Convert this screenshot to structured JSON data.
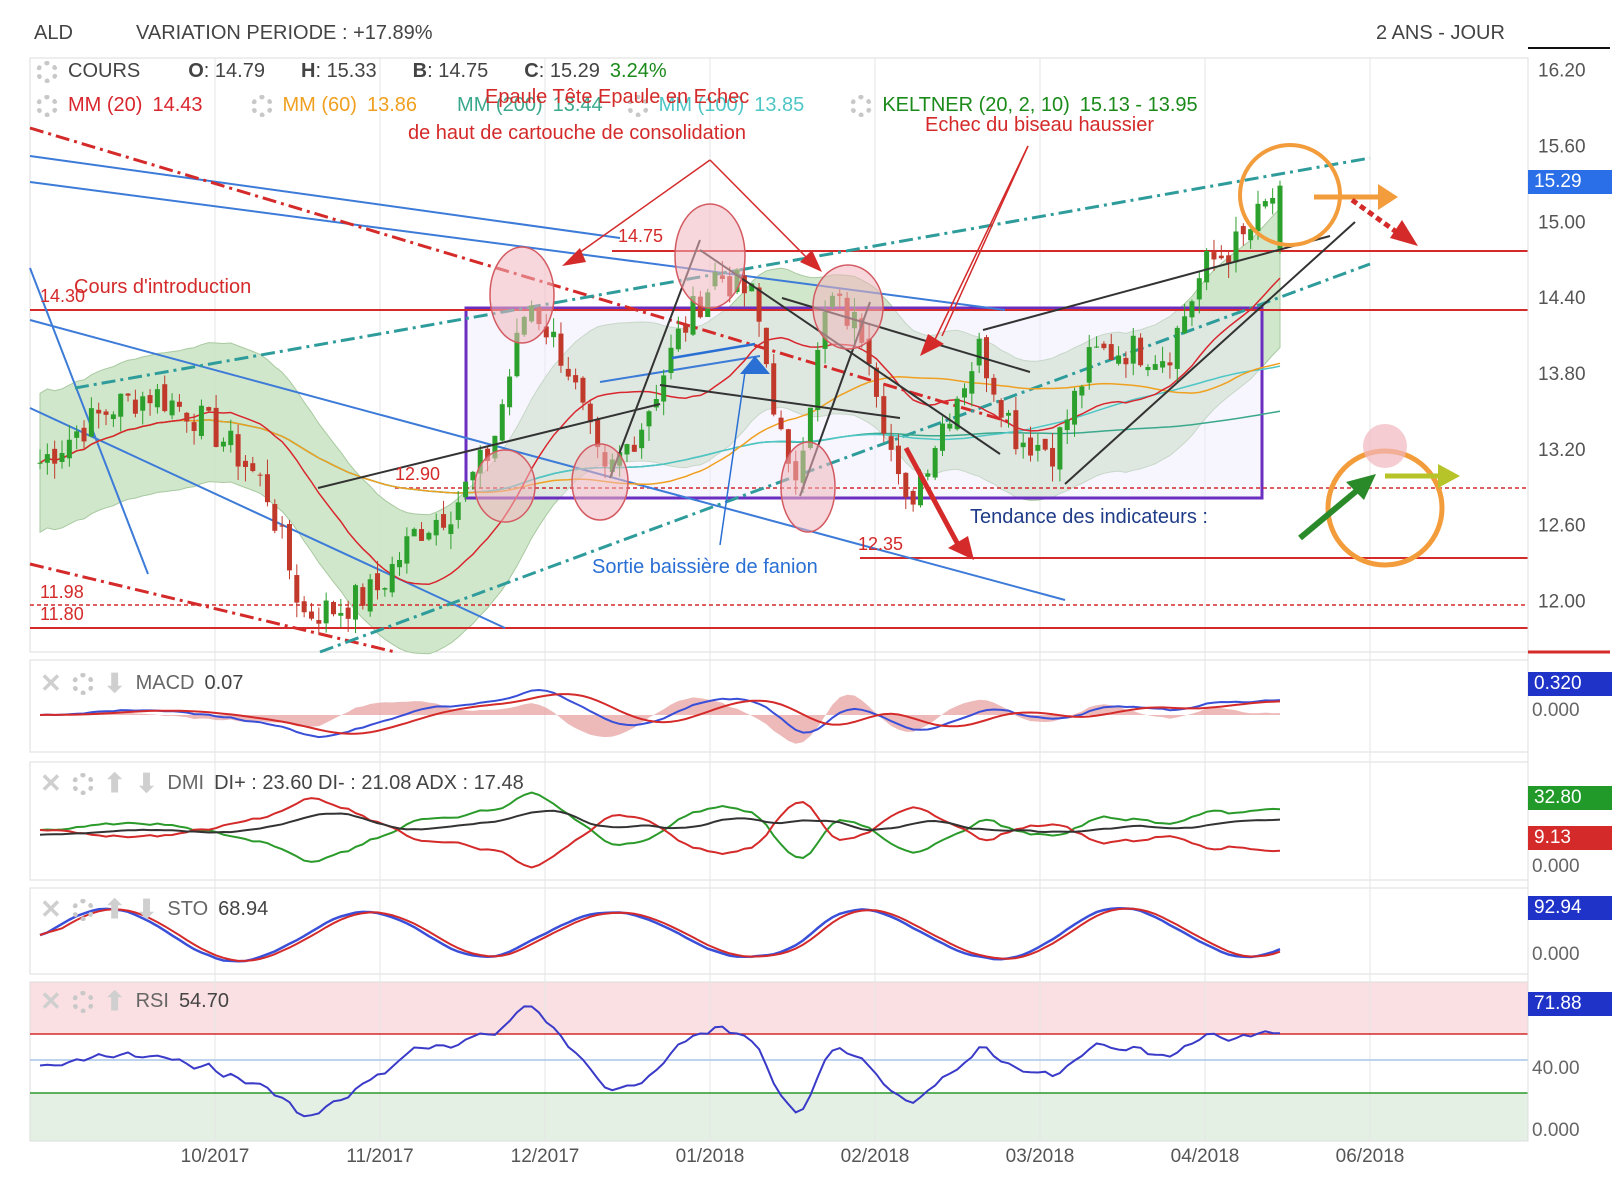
{
  "header": {
    "ticker": "ALD",
    "variation": "VARIATION PERIODE : +17.89%",
    "period": "2 ANS - JOUR"
  },
  "ohlc": {
    "cours_label": "COURS",
    "open_key": "O",
    "open": "14.79",
    "high_key": "H",
    "high": "15.33",
    "low_key": "B",
    "low": "14.75",
    "close_key": "C",
    "close": "15.29",
    "change": "3.24%"
  },
  "overlays": {
    "mm20": {
      "label": "MM (20)",
      "value": "14.43",
      "color": "#d9262e"
    },
    "mm60": {
      "label": "MM (60)",
      "value": "13.86",
      "color": "#f0a020"
    },
    "mm200": {
      "label": "MM (200)",
      "value": "13.44",
      "color": "#3aa88c"
    },
    "mm100": {
      "label": "MM (100)",
      "value": "13.85",
      "color": "#4fc6c6"
    },
    "keltner": {
      "label": "KELTNER (20, 2, 10)",
      "value": "15.13 - 13.95",
      "color": "#1a8a1a"
    }
  },
  "annotations": {
    "ete_line1": "Epaule Tête Epaule en Echec",
    "ete_line2": "de haut de cartouche de consolidation",
    "biseau": "Echec du biseau haussier",
    "intro": "Cours d'introduction",
    "fanion": "Sortie baissière de fanion",
    "tendance": "Tendance des indicateurs :"
  },
  "levels": {
    "l1475": "14.75",
    "l1430": "14.30",
    "l1290": "12.90",
    "l1235": "12.35",
    "l1198": "11.98",
    "l1180": "11.80"
  },
  "panels": {
    "macd": {
      "label": "MACD",
      "value": "0.07",
      "badge": "0.320",
      "zero": "0.000"
    },
    "dmi": {
      "label": "DMI",
      "text": "DI+ : 23.60 DI- : 21.08 ADX : 17.48",
      "badge_green": "32.80",
      "badge_red": "9.13",
      "zero": "0.000"
    },
    "sto": {
      "label": "STO",
      "value": "68.94",
      "badge": "92.94",
      "zero": "0.000"
    },
    "rsi": {
      "label": "RSI",
      "value": "54.70",
      "badge": "71.88",
      "mid": "40.00",
      "zero": "0.000"
    }
  },
  "price_axis": {
    "ticks": [
      "16.20",
      "15.60",
      "15.00",
      "14.40",
      "13.80",
      "13.20",
      "12.60",
      "12.00"
    ],
    "last_badge": "15.29"
  },
  "x_axis": {
    "ticks": [
      "10/2017",
      "11/2017",
      "12/2017",
      "01/2018",
      "02/2018",
      "03/2018",
      "04/2018",
      "06/2018"
    ]
  },
  "colors": {
    "up": "#2ca02c",
    "down": "#c0392b",
    "annotation_red": "#d42a2a",
    "annotation_blue": "#2a6fd4",
    "annotation_teal": "#2f9c9c",
    "box_purple": "#6a2fc0",
    "highlight_orange": "#f39c3c",
    "badge_blue": "#1f33c8",
    "badge_green": "#229a2a",
    "badge_red": "#d42a2a"
  },
  "chart_data": {
    "type": "candlestick",
    "title": "ALD",
    "x_range": [
      "2017-09-01",
      "2018-05-31"
    ],
    "ylim": [
      11.6,
      16.3
    ],
    "close_series": [
      {
        "date": "2017-09-05",
        "close": 13.1
      },
      {
        "date": "2017-09-12",
        "close": 13.35
      },
      {
        "date": "2017-09-19",
        "close": 13.55
      },
      {
        "date": "2017-09-26",
        "close": 13.65
      },
      {
        "date": "2017-10-03",
        "close": 13.5
      },
      {
        "date": "2017-10-10",
        "close": 13.25
      },
      {
        "date": "2017-10-17",
        "close": 12.9
      },
      {
        "date": "2017-10-24",
        "close": 11.9
      },
      {
        "date": "2017-10-31",
        "close": 11.95
      },
      {
        "date": "2017-11-07",
        "close": 12.1
      },
      {
        "date": "2017-11-14",
        "close": 12.55
      },
      {
        "date": "2017-11-21",
        "close": 12.75
      },
      {
        "date": "2017-11-28",
        "close": 13.2
      },
      {
        "date": "2017-12-05",
        "close": 14.4
      },
      {
        "date": "2017-12-12",
        "close": 13.9
      },
      {
        "date": "2017-12-19",
        "close": 12.95
      },
      {
        "date": "2017-12-26",
        "close": 13.4
      },
      {
        "date": "2018-01-02",
        "close": 14.1
      },
      {
        "date": "2018-01-09",
        "close": 14.6
      },
      {
        "date": "2018-01-16",
        "close": 14.4
      },
      {
        "date": "2018-01-23",
        "close": 12.85
      },
      {
        "date": "2018-01-30",
        "close": 14.4
      },
      {
        "date": "2018-02-06",
        "close": 14.1
      },
      {
        "date": "2018-02-13",
        "close": 12.7
      },
      {
        "date": "2018-02-20",
        "close": 13.4
      },
      {
        "date": "2018-02-27",
        "close": 14.0
      },
      {
        "date": "2018-03-06",
        "close": 13.3
      },
      {
        "date": "2018-03-13",
        "close": 13.2
      },
      {
        "date": "2018-03-20",
        "close": 13.95
      },
      {
        "date": "2018-03-27",
        "close": 14.0
      },
      {
        "date": "2018-04-03",
        "close": 13.95
      },
      {
        "date": "2018-04-10",
        "close": 14.65
      },
      {
        "date": "2018-04-17",
        "close": 14.85
      },
      {
        "date": "2018-04-24",
        "close": 15.29
      }
    ],
    "horizontal_levels": [
      14.75,
      14.3,
      12.9,
      12.35,
      11.98,
      11.8
    ],
    "last": {
      "open": 14.79,
      "high": 15.33,
      "low": 14.75,
      "close": 15.29,
      "change_pct": 3.24
    },
    "indicators": {
      "MM20": 14.43,
      "MM60": 13.86,
      "MM200": 13.44,
      "MM100": 13.85,
      "Keltner_upper": 15.13,
      "Keltner_lower": 13.95,
      "MACD": 0.07,
      "DI_plus": 23.6,
      "DI_minus": 21.08,
      "ADX": 17.48,
      "STO": 68.94,
      "RSI": 54.7
    }
  }
}
